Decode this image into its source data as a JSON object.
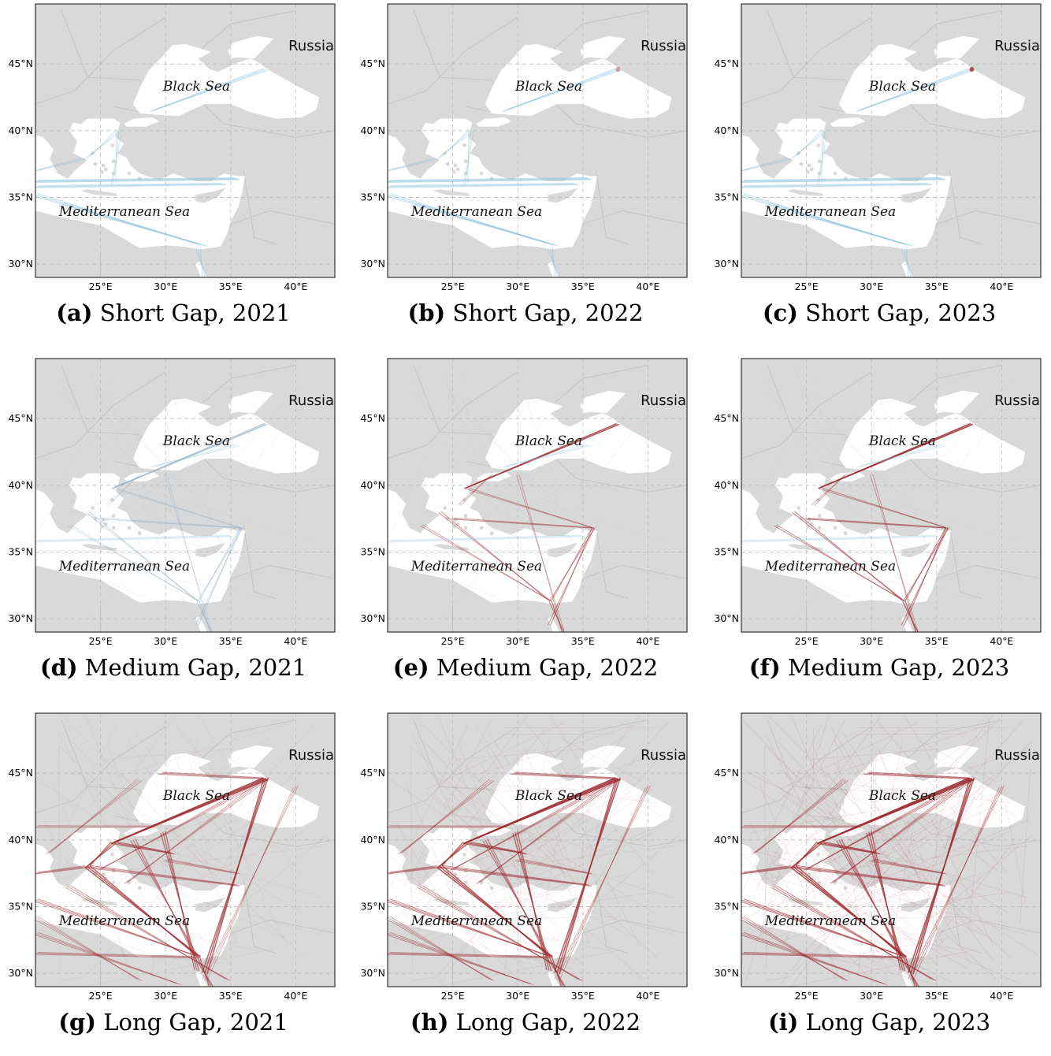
{
  "map": {
    "lat_ticks": [
      "45°N",
      "40°N",
      "35°N",
      "30°N"
    ],
    "lon_ticks": [
      "25°E",
      "30°E",
      "35°E",
      "40°E"
    ],
    "labels": {
      "russia": "Russia",
      "black_sea": "Black Sea",
      "mediterranean": "Mediterranean Sea"
    },
    "colors": {
      "land": "#d9d9d9",
      "sea": "#ffffff",
      "short_tracks": "#8fc4dc",
      "long_tracks": "#9b2a30",
      "frame": "#333333"
    }
  },
  "panels": [
    {
      "letter": "(a)",
      "title": "Short Gap, 2021"
    },
    {
      "letter": "(b)",
      "title": "Short Gap, 2022"
    },
    {
      "letter": "(c)",
      "title": "Short Gap, 2023"
    },
    {
      "letter": "(d)",
      "title": "Medium Gap, 2021"
    },
    {
      "letter": "(e)",
      "title": "Medium Gap, 2022"
    },
    {
      "letter": "(f)",
      "title": "Medium Gap, 2023"
    },
    {
      "letter": "(g)",
      "title": "Long Gap, 2021"
    },
    {
      "letter": "(h)",
      "title": "Long Gap, 2022"
    },
    {
      "letter": "(i)",
      "title": "Long Gap, 2023"
    }
  ]
}
